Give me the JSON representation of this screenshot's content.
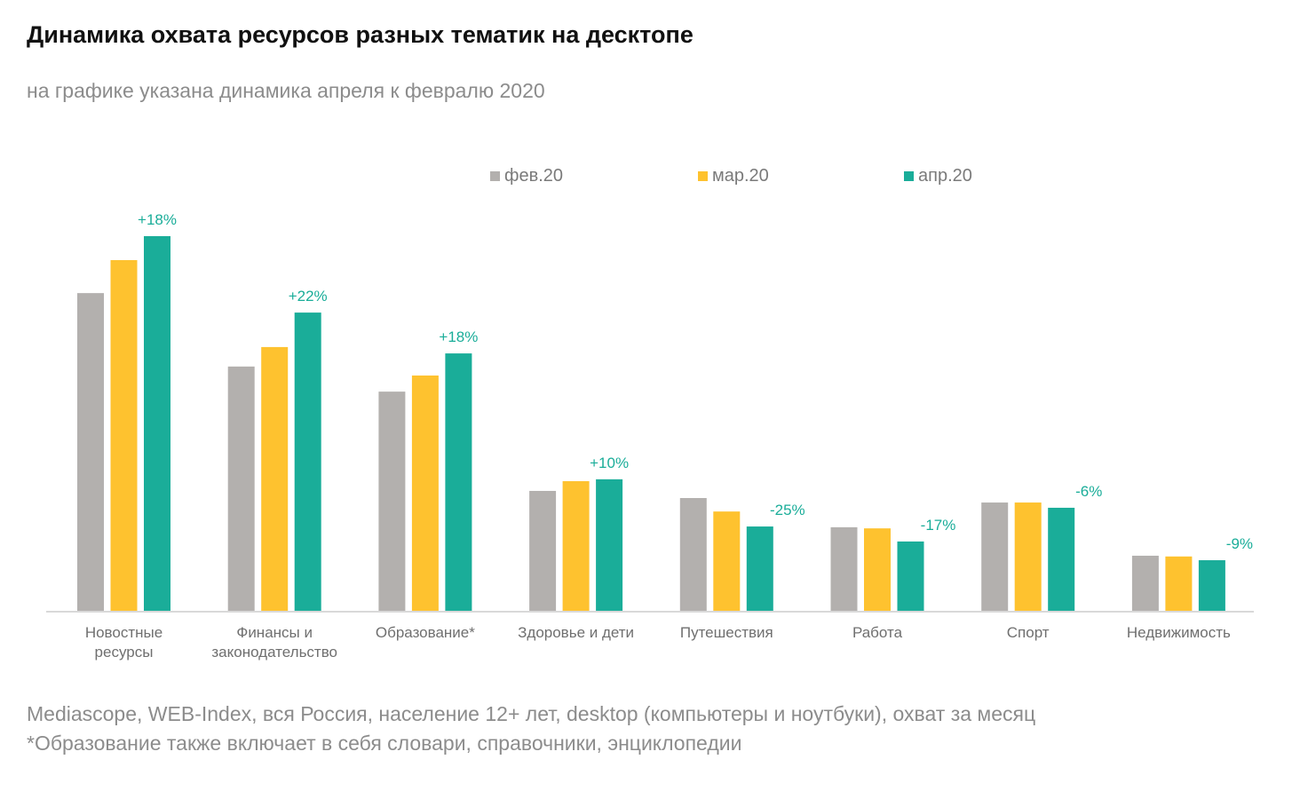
{
  "title": "Динамика охвата ресурсов разных тематик на десктопе",
  "subtitle": "на графике указана динамика апреля к февралю 2020",
  "footer": {
    "source": "Mediascope, WEB-Index, вся Россия, население 12+ лет, desktop (компьютеры и ноутбуки), охват за месяц",
    "note": "*Образование также включает в себя словари, справочники, энциклопедии"
  },
  "colors": {
    "feb": "#b3b0ae",
    "mar": "#fec22f",
    "apr": "#1aad99",
    "axis": "#d9d9d9",
    "label": "#1aad99"
  },
  "chart_data": {
    "type": "bar",
    "title": "Динамика охвата ресурсов разных тематик на десктопе",
    "subtitle": "на графике указана динамика апреля к февралю 2020",
    "xlabel": "",
    "ylabel": "",
    "y_axis_visible": false,
    "grid": false,
    "legend_position": "top-center",
    "ylim": [
      0,
      100
    ],
    "value_units": "relative reach index (no axis shown; max bar = 100)",
    "categories": [
      [
        "Новостные",
        "ресурсы"
      ],
      [
        "Финансы и",
        "законодательство"
      ],
      [
        "Образование*"
      ],
      [
        "Здоровье и дети"
      ],
      [
        "Путешествия"
      ],
      [
        "Работа"
      ],
      [
        "Спорт"
      ],
      [
        "Недвижимость"
      ]
    ],
    "series": [
      {
        "name": "фев.20",
        "key": "feb",
        "values": [
          84.8,
          65.2,
          58.5,
          32.0,
          30.1,
          22.3,
          28.9,
          14.7
        ]
      },
      {
        "name": "мар.20",
        "key": "mar",
        "values": [
          93.6,
          70.4,
          62.8,
          34.6,
          26.5,
          22.0,
          28.9,
          14.5
        ]
      },
      {
        "name": "апр.20",
        "key": "apr",
        "values": [
          100.0,
          79.6,
          68.7,
          35.1,
          22.5,
          18.5,
          27.5,
          13.5
        ]
      }
    ],
    "annotations": {
      "series": "апр.20",
      "description": "динамика апреля к февралю",
      "labels": [
        "+18%",
        "+22%",
        "+18%",
        "+10%",
        "-25%",
        "-17%",
        "-6%",
        "-9%"
      ]
    }
  }
}
